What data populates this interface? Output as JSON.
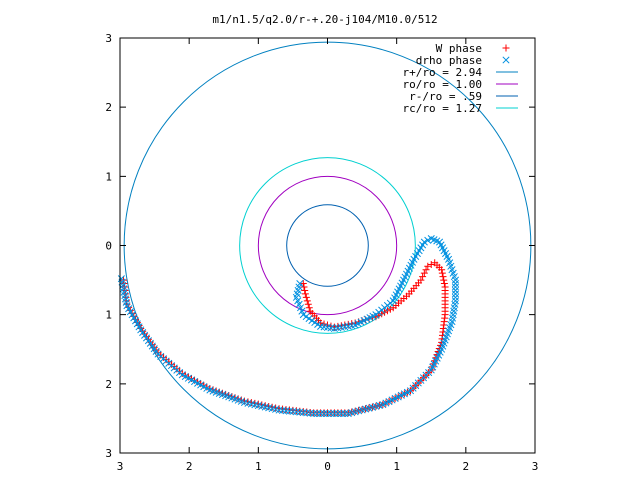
{
  "chart_data": {
    "type": "scatter",
    "title": "m1/n1.5/q2.0/r-+.20-j104/M10.0/512",
    "xlabel": "",
    "ylabel": "",
    "xlim": [
      -3,
      3
    ],
    "ylim": [
      -3,
      3
    ],
    "x_ticks": [
      "3",
      "2",
      "1",
      "0",
      "1",
      "2",
      "3"
    ],
    "y_ticks": [
      "3",
      "2",
      "1",
      "0",
      "1",
      "2",
      "3"
    ],
    "grid": false,
    "legend_position": "top-right",
    "series": [
      {
        "name": "W phase",
        "marker": "+",
        "color": "#ff0000",
        "points": [
          [
            -0.35,
            -0.55
          ],
          [
            -0.32,
            -0.7
          ],
          [
            -0.25,
            -0.95
          ],
          [
            -0.1,
            -1.12
          ],
          [
            0.1,
            -1.18
          ],
          [
            0.4,
            -1.12
          ],
          [
            0.7,
            -1.03
          ],
          [
            0.95,
            -0.9
          ],
          [
            1.18,
            -0.7
          ],
          [
            1.35,
            -0.5
          ],
          [
            1.45,
            -0.3
          ],
          [
            1.55,
            -0.25
          ],
          [
            1.65,
            -0.35
          ],
          [
            1.7,
            -0.6
          ],
          [
            1.7,
            -1.0
          ],
          [
            1.65,
            -1.4
          ],
          [
            1.5,
            -1.8
          ],
          [
            1.2,
            -2.1
          ],
          [
            0.8,
            -2.3
          ],
          [
            0.3,
            -2.42
          ],
          [
            -0.2,
            -2.42
          ],
          [
            -0.7,
            -2.36
          ],
          [
            -1.2,
            -2.25
          ],
          [
            -1.7,
            -2.07
          ],
          [
            -2.1,
            -1.85
          ],
          [
            -2.45,
            -1.55
          ],
          [
            -2.7,
            -1.2
          ],
          [
            -2.9,
            -0.85
          ],
          [
            -2.95,
            -0.5
          ]
        ]
      },
      {
        "name": "drho phase",
        "marker": "×",
        "color": "#0090e0",
        "points": [
          [
            -0.4,
            -0.55
          ],
          [
            -0.45,
            -0.75
          ],
          [
            -0.35,
            -1.0
          ],
          [
            -0.1,
            -1.17
          ],
          [
            0.1,
            -1.2
          ],
          [
            0.4,
            -1.15
          ],
          [
            0.7,
            -1.0
          ],
          [
            0.95,
            -0.8
          ],
          [
            1.1,
            -0.5
          ],
          [
            1.25,
            -0.2
          ],
          [
            1.4,
            0.05
          ],
          [
            1.5,
            0.1
          ],
          [
            1.62,
            0.05
          ],
          [
            1.75,
            -0.2
          ],
          [
            1.85,
            -0.5
          ],
          [
            1.85,
            -0.8
          ],
          [
            1.8,
            -1.1
          ],
          [
            1.65,
            -1.5
          ],
          [
            1.5,
            -1.8
          ],
          [
            1.2,
            -2.1
          ],
          [
            0.8,
            -2.3
          ],
          [
            0.3,
            -2.43
          ],
          [
            -0.2,
            -2.43
          ],
          [
            -0.7,
            -2.38
          ],
          [
            -1.2,
            -2.27
          ],
          [
            -1.7,
            -2.09
          ],
          [
            -2.1,
            -1.87
          ],
          [
            -2.45,
            -1.57
          ],
          [
            -2.7,
            -1.22
          ],
          [
            -2.9,
            -0.87
          ],
          [
            -2.98,
            -0.48
          ]
        ]
      },
      {
        "name": "r+/ro = 2.94",
        "type": "circle",
        "radius": 2.94,
        "color": "#0080c0"
      },
      {
        "name": "ro/ro = 1.00",
        "type": "circle",
        "radius": 1.0,
        "color": "#a000c0"
      },
      {
        "name": "r-/ro = .59",
        "type": "circle",
        "radius": 0.59,
        "color": "#0060b0"
      },
      {
        "name": "rc/ro = 1.27",
        "type": "circle",
        "radius": 1.27,
        "color": "#00d0d0"
      }
    ]
  }
}
